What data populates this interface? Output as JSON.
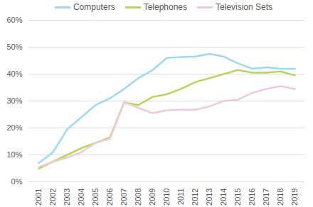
{
  "chart_data": {
    "type": "line",
    "categories": [
      "2001",
      "2002",
      "2003",
      "2004",
      "2005",
      "2006",
      "2007",
      "2008",
      "2009",
      "2010",
      "2011",
      "2012",
      "2013",
      "2014",
      "2015",
      "2016",
      "2017",
      "2018",
      "2019"
    ],
    "series": [
      {
        "name": "Computers",
        "color": "#9dd8f5",
        "values": [
          7,
          11,
          19.5,
          24,
          28.5,
          31,
          34.5,
          38.5,
          41.5,
          46,
          46.3,
          46.5,
          47.5,
          46.5,
          44,
          42,
          42.5,
          42,
          42
        ]
      },
      {
        "name": "Telephones",
        "color": "#b9d65c",
        "values": [
          5,
          7.5,
          10,
          12.5,
          14.5,
          16.5,
          29.5,
          28.5,
          31.5,
          32.5,
          34.5,
          37,
          38.5,
          40,
          41.5,
          40.5,
          40.5,
          41,
          39.5
        ]
      },
      {
        "name": "Television Sets",
        "color": "#f0c9d3",
        "values": [
          5.5,
          7.5,
          9,
          11,
          14.5,
          16,
          29.5,
          27.5,
          25.5,
          26.5,
          26.8,
          26.8,
          28,
          30,
          30.5,
          33,
          34.5,
          35.5,
          34.5
        ]
      }
    ],
    "ylim": [
      0,
      60
    ],
    "yticks": [
      {
        "value": 0,
        "label": "0%"
      },
      {
        "value": 10,
        "label": "10%"
      },
      {
        "value": 20,
        "label": "20%"
      },
      {
        "value": 30,
        "label": "30%"
      },
      {
        "value": 40,
        "label": "40%"
      },
      {
        "value": 50,
        "label": "50%"
      },
      {
        "value": 60,
        "label": "60%"
      }
    ],
    "grid": true,
    "legend": "top"
  }
}
